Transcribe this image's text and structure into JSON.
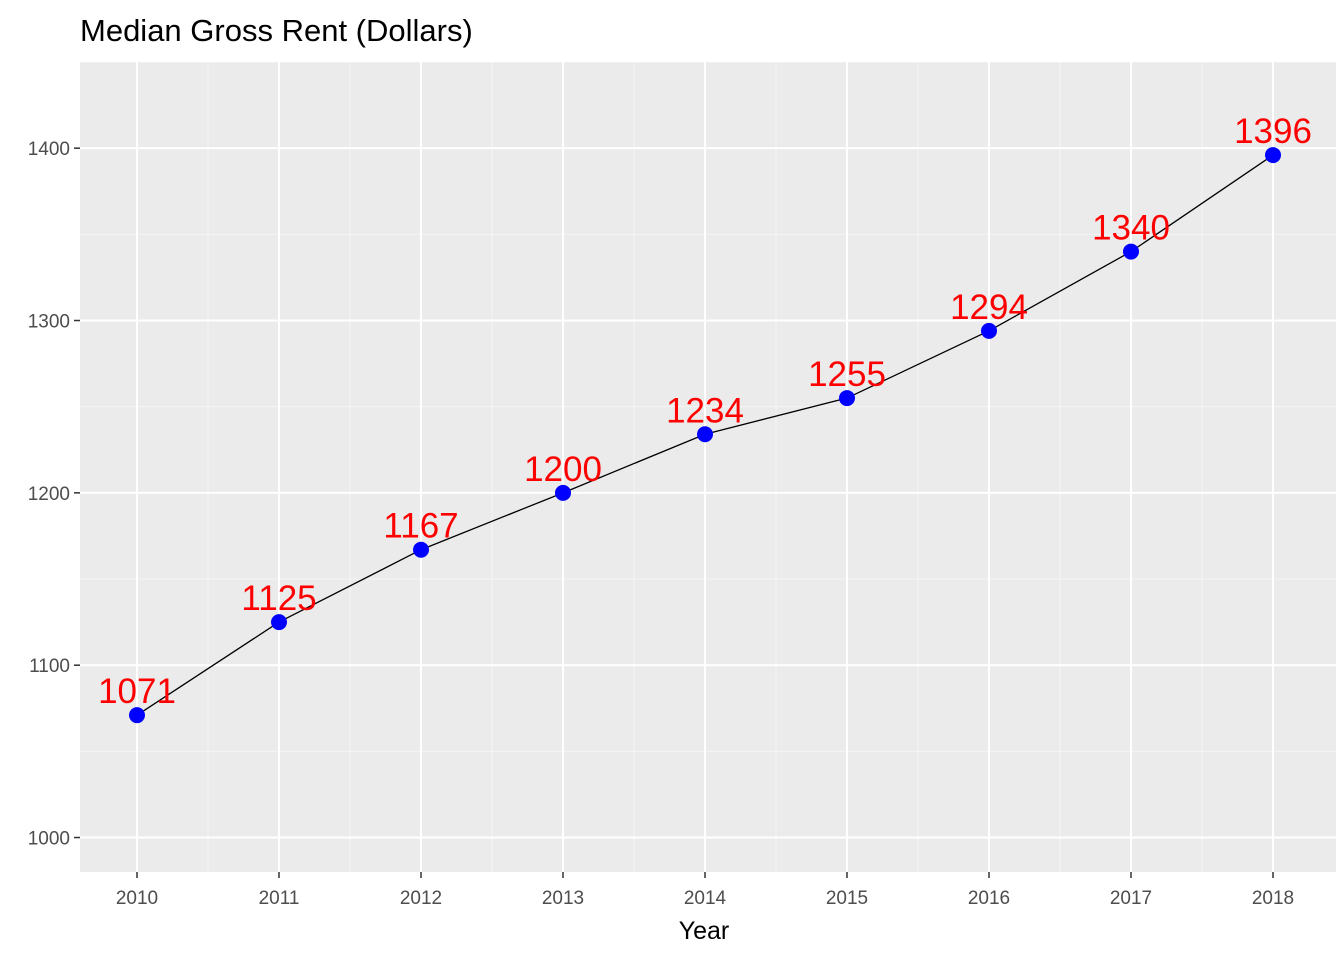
{
  "chart_data": {
    "type": "line",
    "title": "Median Gross Rent (Dollars)",
    "xlabel": "Year",
    "ylabel": "",
    "x": [
      "2010",
      "2011",
      "2012",
      "2013",
      "2014",
      "2015",
      "2016",
      "2017",
      "2018"
    ],
    "series": [
      {
        "values": [
          1071,
          1125,
          1167,
          1200,
          1234,
          1255,
          1294,
          1340,
          1396
        ]
      }
    ],
    "data_labels": [
      "1071",
      "1125",
      "1167",
      "1200",
      "1234",
      "1255",
      "1294",
      "1340",
      "1396"
    ],
    "yticks": [
      1000,
      1100,
      1200,
      1300,
      1400
    ],
    "ylim": [
      980,
      1450
    ],
    "grid": true,
    "legend": "none",
    "colors": {
      "panel_background": "#ebebeb",
      "gridline": "#ffffff",
      "line": "#000000",
      "point": "#0000ff",
      "data_label": "#ff0000",
      "tick_mark": "#333333"
    }
  }
}
